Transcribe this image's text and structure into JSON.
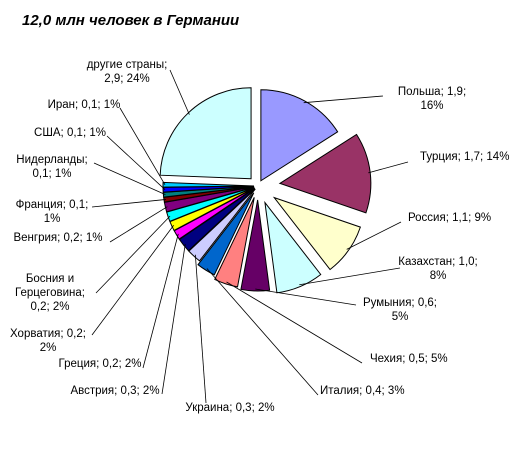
{
  "chart_data": {
    "type": "pie",
    "title": "12,0 млн человек в Германии",
    "exploded": true,
    "slices": [
      {
        "label_lines": [
          "Польша; 1,9;",
          "16%"
        ],
        "value": 1.9,
        "percent": 16,
        "color": "#9999ff"
      },
      {
        "label_lines": [
          "Турция; 1,7; 14%"
        ],
        "value": 1.7,
        "percent": 14,
        "color": "#993366"
      },
      {
        "label_lines": [
          "Россия; 1,1; 9%"
        ],
        "value": 1.1,
        "percent": 9,
        "color": "#ffffcc"
      },
      {
        "label_lines": [
          "Казахстан; 1,0;",
          "8%"
        ],
        "value": 1.0,
        "percent": 8,
        "color": "#ccffff"
      },
      {
        "label_lines": [
          "Румыния; 0,6;",
          "5%"
        ],
        "value": 0.6,
        "percent": 5,
        "color": "#660066"
      },
      {
        "label_lines": [
          "Чехия; 0,5; 5%"
        ],
        "value": 0.5,
        "percent": 5,
        "color": "#ff8080"
      },
      {
        "label_lines": [
          "Италия; 0,4; 3%"
        ],
        "value": 0.4,
        "percent": 3,
        "color": "#0066cc"
      },
      {
        "label_lines": [
          "Украина; 0,3; 2%"
        ],
        "value": 0.3,
        "percent": 2,
        "color": "#ccccff"
      },
      {
        "label_lines": [
          "Австрия; 0,3; 2%"
        ],
        "value": 0.3,
        "percent": 2,
        "color": "#000080"
      },
      {
        "label_lines": [
          "Греция; 0,2; 2%"
        ],
        "value": 0.2,
        "percent": 2,
        "color": "#ff00ff"
      },
      {
        "label_lines": [
          "Хорватия; 0,2;",
          "2%"
        ],
        "value": 0.2,
        "percent": 2,
        "color": "#ffff00"
      },
      {
        "label_lines": [
          "Босния и",
          "Герцеговина;",
          "0,2; 2%"
        ],
        "value": 0.2,
        "percent": 2,
        "color": "#00ffff"
      },
      {
        "label_lines": [
          "Венгрия; 0,2; 1%"
        ],
        "value": 0.2,
        "percent": 1,
        "color": "#800080"
      },
      {
        "label_lines": [
          "Франция; 0,1;",
          "1%"
        ],
        "value": 0.1,
        "percent": 1,
        "color": "#800000"
      },
      {
        "label_lines": [
          "Нидерланды;",
          "0,1; 1%"
        ],
        "value": 0.1,
        "percent": 1,
        "color": "#008080"
      },
      {
        "label_lines": [
          "США; 0,1; 1%"
        ],
        "value": 0.1,
        "percent": 1,
        "color": "#0000ff"
      },
      {
        "label_lines": [
          "Иран; 0,1; 1%"
        ],
        "value": 0.1,
        "percent": 1,
        "color": "#00ccff"
      },
      {
        "label_lines": [
          "другие страны;",
          "2,9; 24%"
        ],
        "value": 2.9,
        "percent": 24,
        "color": "#ccffff"
      }
    ]
  }
}
